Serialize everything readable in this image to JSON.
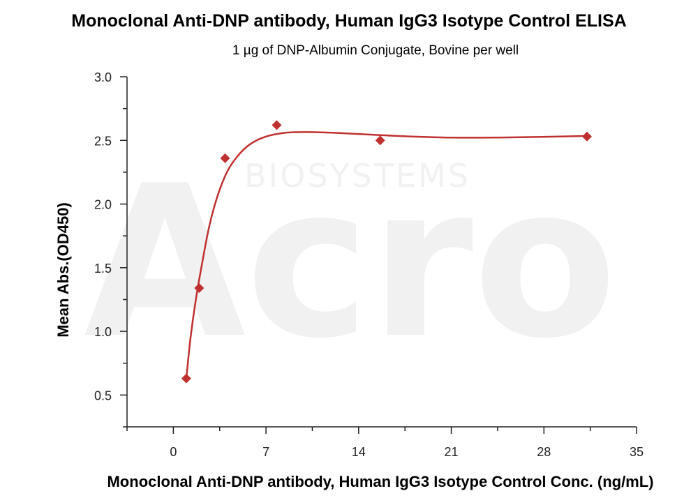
{
  "chart_data": {
    "type": "scatter",
    "title": "Monoclonal Anti-DNP antibody, Human IgG3 Isotype Control ELISA",
    "subtitle": "1 µg of DNP-Albumin Conjugate, Bovine per well",
    "xlabel": "Monoclonal Anti-DNP antibody, Human IgG3 Isotype Control Conc. (ng/mL)",
    "ylabel": "Mean Abs.(OD450)",
    "xlim": [
      -3.5,
      35
    ],
    "ylim": [
      0.25,
      3.0
    ],
    "xticks": [
      0,
      7,
      14,
      21,
      28,
      35
    ],
    "yticks": [
      0.5,
      1.0,
      1.5,
      2.0,
      2.5,
      3.0
    ],
    "xtick_labels": [
      "0",
      "7",
      "14",
      "21",
      "28",
      "35"
    ],
    "ytick_labels": [
      "0.5",
      "1.0",
      "1.5",
      "2.0",
      "2.5",
      "3.0"
    ],
    "series": [
      {
        "marker": "diamond",
        "color": "#c03030",
        "points": [
          {
            "x": 0.98,
            "y": 0.63
          },
          {
            "x": 1.95,
            "y": 1.34
          },
          {
            "x": 3.91,
            "y": 2.36
          },
          {
            "x": 7.81,
            "y": 2.62
          },
          {
            "x": 15.63,
            "y": 2.5
          },
          {
            "x": 31.25,
            "y": 2.53
          }
        ]
      }
    ],
    "fit_curve": [
      {
        "x": 0.98,
        "y": 0.63
      },
      {
        "x": 1.3,
        "y": 0.95
      },
      {
        "x": 1.7,
        "y": 1.25
      },
      {
        "x": 2.2,
        "y": 1.55
      },
      {
        "x": 2.7,
        "y": 1.82
      },
      {
        "x": 3.3,
        "y": 2.05
      },
      {
        "x": 4.0,
        "y": 2.24
      },
      {
        "x": 4.8,
        "y": 2.37
      },
      {
        "x": 5.8,
        "y": 2.47
      },
      {
        "x": 7.0,
        "y": 2.53
      },
      {
        "x": 8.5,
        "y": 2.56
      },
      {
        "x": 10.0,
        "y": 2.565
      },
      {
        "x": 12.0,
        "y": 2.56
      },
      {
        "x": 15.0,
        "y": 2.545
      },
      {
        "x": 18.0,
        "y": 2.53
      },
      {
        "x": 21.0,
        "y": 2.522
      },
      {
        "x": 24.0,
        "y": 2.522
      },
      {
        "x": 27.0,
        "y": 2.526
      },
      {
        "x": 31.25,
        "y": 2.535
      }
    ],
    "grid": false,
    "legend": "none",
    "watermark": "Acro BIOSYSTEMS"
  }
}
